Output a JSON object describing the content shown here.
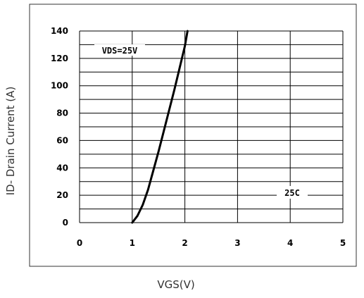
{
  "chart_data": {
    "type": "line",
    "xlabel": "VGS(V)",
    "ylabel": "ID- Drain Current (A)",
    "xlim": [
      0,
      5
    ],
    "ylim": [
      0,
      140
    ],
    "x_ticks": [
      "0",
      "1",
      "2",
      "3",
      "4",
      "5"
    ],
    "y_ticks": [
      "0",
      "20",
      "40",
      "60",
      "80",
      "100",
      "120",
      "140"
    ],
    "grid": true,
    "annotations": [
      "VDS=25V",
      "25C"
    ],
    "series": [
      {
        "x": [
          1.0,
          1.1,
          1.2,
          1.3,
          1.4,
          1.5,
          1.6,
          1.7,
          1.8,
          1.9,
          2.0,
          2.05
        ],
        "y": [
          0,
          5,
          13,
          24,
          38,
          52,
          67,
          82,
          97,
          113,
          129,
          140
        ]
      }
    ],
    "line_color": "#000000",
    "grid_color": "#000000"
  }
}
